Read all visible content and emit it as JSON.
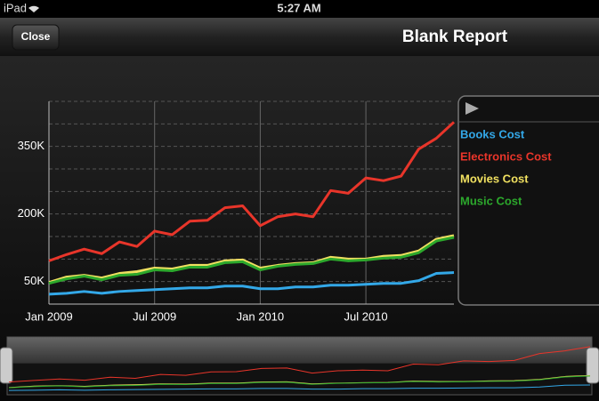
{
  "status_bar": {
    "device": "iPad",
    "time": "5:27 AM"
  },
  "nav_bar": {
    "button": "Close",
    "title": "Blank Report"
  },
  "chart_data": {
    "type": "line",
    "x": [
      "2009-01",
      "2009-02",
      "2009-03",
      "2009-04",
      "2009-05",
      "2009-06",
      "2009-07",
      "2009-08",
      "2009-09",
      "2009-10",
      "2009-11",
      "2009-12",
      "2010-01",
      "2010-02",
      "2010-03",
      "2010-04",
      "2010-05",
      "2010-06",
      "2010-07",
      "2010-08",
      "2010-09",
      "2010-10",
      "2010-11",
      "2010-12"
    ],
    "xticks": [
      {
        "value": "2009-01",
        "label": "Jan 2009"
      },
      {
        "value": "2009-07",
        "label": "Jul 2009"
      },
      {
        "value": "2010-01",
        "label": "Jan 2010"
      },
      {
        "value": "2010-07",
        "label": "Jul 2010"
      }
    ],
    "ylim": [
      0,
      450000
    ],
    "yticks": [
      {
        "value": 50000,
        "label": "50K"
      },
      {
        "value": 200000,
        "label": "200K"
      },
      {
        "value": 350000,
        "label": "350K"
      }
    ],
    "ygrid": [
      50000,
      100000,
      150000,
      200000,
      250000,
      300000,
      350000,
      400000,
      450000
    ],
    "grid": true,
    "legend": "right",
    "series": [
      {
        "name": "Books Cost",
        "color": "#33a8e8",
        "values": [
          22000,
          24000,
          28000,
          24000,
          28000,
          30000,
          32000,
          34000,
          36000,
          36000,
          40000,
          40000,
          34000,
          34000,
          38000,
          38000,
          42000,
          42000,
          44000,
          46000,
          46000,
          52000,
          68000,
          70000
        ]
      },
      {
        "name": "Electronics Cost",
        "color": "#e8352a",
        "values": [
          96000,
          110000,
          122000,
          112000,
          138000,
          128000,
          162000,
          154000,
          184000,
          186000,
          214000,
          218000,
          174000,
          194000,
          200000,
          194000,
          252000,
          246000,
          280000,
          274000,
          284000,
          344000,
          368000,
          404000
        ]
      },
      {
        "name": "Movies Cost",
        "color": "#f0e060",
        "values": [
          48000,
          60000,
          64000,
          58000,
          68000,
          72000,
          80000,
          78000,
          86000,
          86000,
          96000,
          98000,
          80000,
          86000,
          90000,
          92000,
          104000,
          100000,
          100000,
          106000,
          108000,
          118000,
          144000,
          152000
        ]
      },
      {
        "name": "Music Cost",
        "color": "#2ca82c",
        "values": [
          46000,
          56000,
          62000,
          54000,
          64000,
          66000,
          76000,
          74000,
          82000,
          82000,
          92000,
          94000,
          76000,
          84000,
          88000,
          90000,
          100000,
          96000,
          98000,
          102000,
          104000,
          114000,
          140000,
          148000
        ]
      }
    ]
  }
}
